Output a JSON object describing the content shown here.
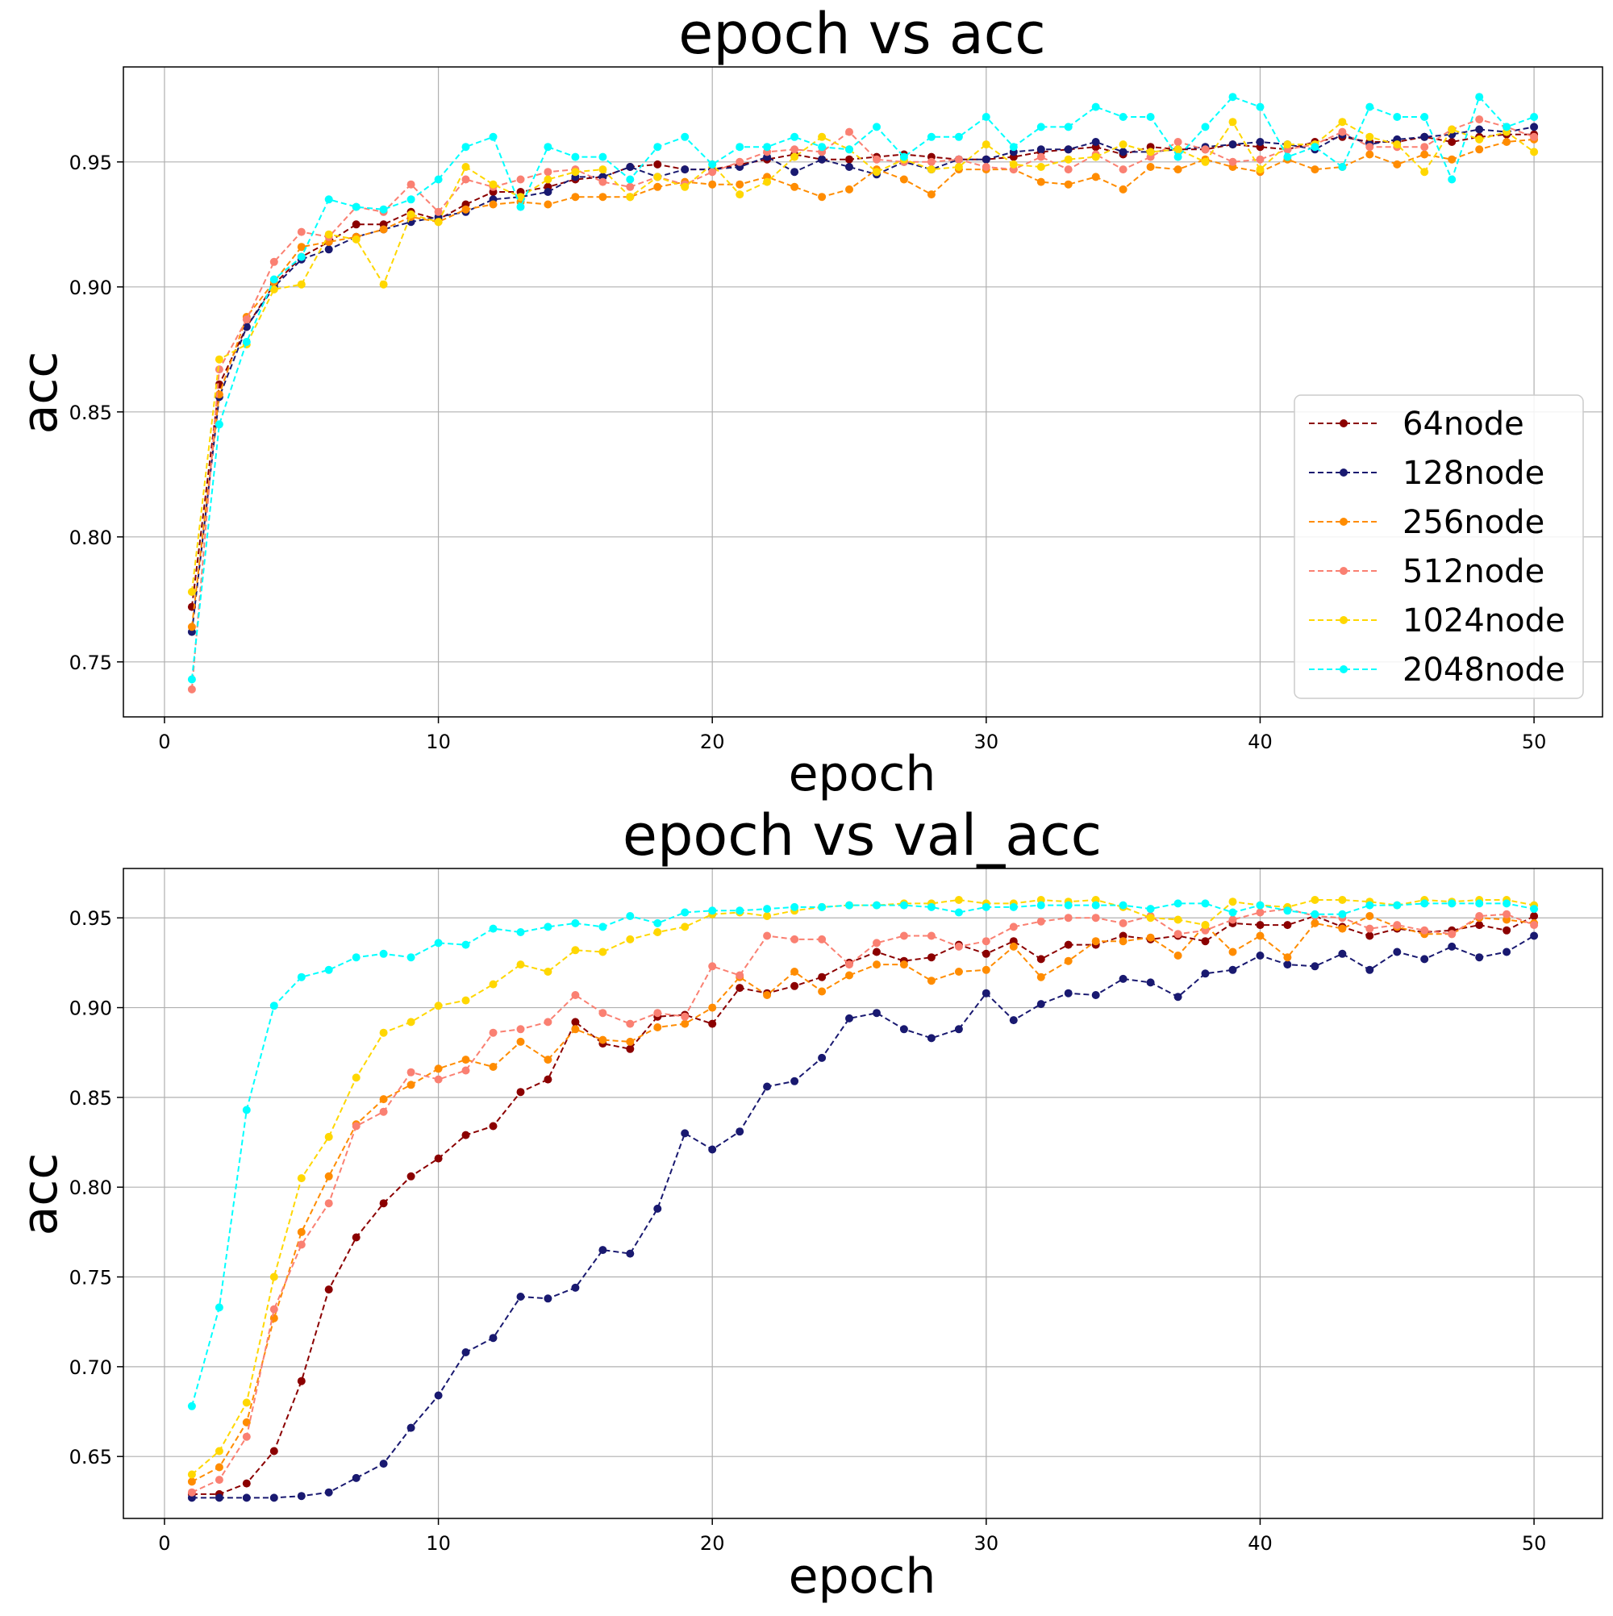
{
  "chart_data": [
    {
      "type": "line",
      "title": "epoch vs acc",
      "xlabel": "epoch",
      "ylabel": "acc",
      "xlim": [
        -1.5,
        52.5
      ],
      "ylim": [
        0.728,
        0.988
      ],
      "xticks": [
        0,
        10,
        20,
        30,
        40,
        50
      ],
      "xtick_labels": [
        "0",
        "10",
        "20",
        "30",
        "40",
        "50"
      ],
      "yticks": [
        0.75,
        0.8,
        0.85,
        0.9,
        0.95
      ],
      "ytick_labels": [
        "0.75",
        "0.80",
        "0.85",
        "0.90",
        "0.95"
      ],
      "grid": true,
      "legend": "center-right",
      "x": [
        1,
        2,
        3,
        4,
        5,
        6,
        7,
        8,
        9,
        10,
        11,
        12,
        13,
        14,
        15,
        16,
        17,
        18,
        19,
        20,
        21,
        22,
        23,
        24,
        25,
        26,
        27,
        28,
        29,
        30,
        31,
        32,
        33,
        34,
        35,
        36,
        37,
        38,
        39,
        40,
        41,
        42,
        43,
        44,
        45,
        46,
        47,
        48,
        49,
        50
      ],
      "series": [
        {
          "name": "64node",
          "color": "#8b0000",
          "values": [
            0.772,
            0.861,
            0.884,
            0.901,
            0.912,
            0.918,
            0.925,
            0.925,
            0.93,
            0.927,
            0.933,
            0.938,
            0.938,
            0.94,
            0.943,
            0.944,
            0.948,
            0.949,
            0.947,
            0.947,
            0.949,
            0.951,
            0.953,
            0.951,
            0.951,
            0.952,
            0.953,
            0.952,
            0.951,
            0.951,
            0.952,
            0.954,
            0.955,
            0.956,
            0.953,
            0.956,
            0.955,
            0.955,
            0.957,
            0.956,
            0.955,
            0.958,
            0.96,
            0.958,
            0.958,
            0.96,
            0.958,
            0.96,
            0.961,
            0.961
          ]
        },
        {
          "name": "128node",
          "color": "#191970",
          "values": [
            0.762,
            0.856,
            0.884,
            0.9,
            0.911,
            0.915,
            0.92,
            0.923,
            0.926,
            0.928,
            0.93,
            0.935,
            0.936,
            0.938,
            0.944,
            0.944,
            0.948,
            0.944,
            0.947,
            0.947,
            0.948,
            0.952,
            0.946,
            0.951,
            0.948,
            0.945,
            0.95,
            0.947,
            0.951,
            0.951,
            0.954,
            0.955,
            0.955,
            0.958,
            0.954,
            0.954,
            0.955,
            0.956,
            0.957,
            0.958,
            0.957,
            0.955,
            0.961,
            0.957,
            0.959,
            0.96,
            0.961,
            0.963,
            0.962,
            0.964
          ]
        },
        {
          "name": "256node",
          "color": "#ff8c00",
          "values": [
            0.764,
            0.857,
            0.888,
            0.902,
            0.916,
            0.918,
            0.92,
            0.923,
            0.928,
            0.926,
            0.931,
            0.933,
            0.934,
            0.933,
            0.936,
            0.936,
            0.936,
            0.94,
            0.942,
            0.941,
            0.941,
            0.944,
            0.94,
            0.936,
            0.939,
            0.947,
            0.943,
            0.937,
            0.947,
            0.947,
            0.947,
            0.942,
            0.941,
            0.944,
            0.939,
            0.948,
            0.947,
            0.951,
            0.948,
            0.946,
            0.951,
            0.947,
            0.948,
            0.953,
            0.949,
            0.953,
            0.951,
            0.955,
            0.958,
            0.959
          ]
        },
        {
          "name": "512node",
          "color": "#fa8072",
          "values": [
            0.739,
            0.867,
            0.887,
            0.91,
            0.922,
            0.92,
            0.932,
            0.93,
            0.941,
            0.93,
            0.943,
            0.94,
            0.943,
            0.946,
            0.947,
            0.942,
            0.94,
            0.944,
            0.941,
            0.946,
            0.95,
            0.954,
            0.955,
            0.954,
            0.962,
            0.951,
            0.95,
            0.95,
            0.951,
            0.948,
            0.947,
            0.952,
            0.947,
            0.953,
            0.947,
            0.952,
            0.958,
            0.955,
            0.95,
            0.951,
            0.955,
            0.957,
            0.962,
            0.956,
            0.956,
            0.956,
            0.963,
            0.967,
            0.964,
            0.96
          ]
        },
        {
          "name": "1024node",
          "color": "#ffd700",
          "values": [
            0.778,
            0.871,
            0.877,
            0.899,
            0.901,
            0.921,
            0.919,
            0.901,
            0.929,
            0.926,
            0.948,
            0.941,
            0.936,
            0.943,
            0.946,
            0.947,
            0.936,
            0.944,
            0.94,
            0.949,
            0.937,
            0.942,
            0.952,
            0.96,
            0.955,
            0.946,
            0.951,
            0.947,
            0.948,
            0.957,
            0.949,
            0.948,
            0.951,
            0.952,
            0.957,
            0.954,
            0.955,
            0.95,
            0.966,
            0.947,
            0.957,
            0.957,
            0.966,
            0.96,
            0.957,
            0.946,
            0.963,
            0.959,
            0.962,
            0.954
          ]
        },
        {
          "name": "2048node",
          "color": "#00ffff",
          "values": [
            0.743,
            0.845,
            0.878,
            0.903,
            0.912,
            0.935,
            0.932,
            0.931,
            0.935,
            0.943,
            0.956,
            0.96,
            0.932,
            0.956,
            0.952,
            0.952,
            0.943,
            0.956,
            0.96,
            0.949,
            0.956,
            0.956,
            0.96,
            0.956,
            0.955,
            0.964,
            0.952,
            0.96,
            0.96,
            0.968,
            0.956,
            0.964,
            0.964,
            0.972,
            0.968,
            0.968,
            0.952,
            0.964,
            0.976,
            0.972,
            0.952,
            0.956,
            0.948,
            0.972,
            0.968,
            0.968,
            0.943,
            0.976,
            0.964,
            0.968
          ]
        }
      ]
    },
    {
      "type": "line",
      "title": "epoch vs val_acc",
      "xlabel": "epoch",
      "ylabel": "acc",
      "xlim": [
        -1.5,
        52.5
      ],
      "ylim": [
        0.6155,
        0.9775
      ],
      "xticks": [
        0,
        10,
        20,
        30,
        40,
        50
      ],
      "xtick_labels": [
        "0",
        "10",
        "20",
        "30",
        "40",
        "50"
      ],
      "yticks": [
        0.65,
        0.7,
        0.75,
        0.8,
        0.85,
        0.9,
        0.95
      ],
      "ytick_labels": [
        "0.65",
        "0.70",
        "0.75",
        "0.80",
        "0.85",
        "0.90",
        "0.95"
      ],
      "grid": true,
      "legend": "none",
      "x": [
        1,
        2,
        3,
        4,
        5,
        6,
        7,
        8,
        9,
        10,
        11,
        12,
        13,
        14,
        15,
        16,
        17,
        18,
        19,
        20,
        21,
        22,
        23,
        24,
        25,
        26,
        27,
        28,
        29,
        30,
        31,
        32,
        33,
        34,
        35,
        36,
        37,
        38,
        39,
        40,
        41,
        42,
        43,
        44,
        45,
        46,
        47,
        48,
        49,
        50
      ],
      "series": [
        {
          "name": "64node",
          "color": "#8b0000",
          "values": [
            0.629,
            0.629,
            0.635,
            0.653,
            0.692,
            0.743,
            0.772,
            0.791,
            0.806,
            0.816,
            0.829,
            0.834,
            0.853,
            0.86,
            0.892,
            0.88,
            0.877,
            0.895,
            0.896,
            0.891,
            0.911,
            0.908,
            0.912,
            0.917,
            0.925,
            0.931,
            0.926,
            0.928,
            0.935,
            0.93,
            0.937,
            0.927,
            0.935,
            0.935,
            0.94,
            0.938,
            0.94,
            0.937,
            0.947,
            0.946,
            0.946,
            0.951,
            0.945,
            0.94,
            0.944,
            0.942,
            0.943,
            0.946,
            0.943,
            0.951
          ]
        },
        {
          "name": "128node",
          "color": "#191970",
          "values": [
            0.627,
            0.627,
            0.627,
            0.627,
            0.628,
            0.63,
            0.638,
            0.646,
            0.666,
            0.684,
            0.708,
            0.716,
            0.739,
            0.738,
            0.744,
            0.765,
            0.763,
            0.788,
            0.83,
            0.821,
            0.831,
            0.856,
            0.859,
            0.872,
            0.894,
            0.897,
            0.888,
            0.883,
            0.888,
            0.908,
            0.893,
            0.902,
            0.908,
            0.907,
            0.916,
            0.914,
            0.906,
            0.919,
            0.921,
            0.929,
            0.924,
            0.923,
            0.93,
            0.921,
            0.931,
            0.927,
            0.934,
            0.928,
            0.931,
            0.94
          ]
        },
        {
          "name": "256node",
          "color": "#ff8c00",
          "values": [
            0.636,
            0.644,
            0.669,
            0.727,
            0.775,
            0.806,
            0.835,
            0.849,
            0.857,
            0.866,
            0.871,
            0.867,
            0.881,
            0.871,
            0.888,
            0.882,
            0.881,
            0.889,
            0.891,
            0.9,
            0.917,
            0.907,
            0.92,
            0.909,
            0.918,
            0.924,
            0.924,
            0.915,
            0.92,
            0.921,
            0.934,
            0.917,
            0.926,
            0.937,
            0.937,
            0.939,
            0.929,
            0.946,
            0.931,
            0.94,
            0.928,
            0.947,
            0.944,
            0.951,
            0.945,
            0.941,
            0.941,
            0.95,
            0.949,
            0.947
          ]
        },
        {
          "name": "512node",
          "color": "#fa8072",
          "values": [
            0.63,
            0.637,
            0.661,
            0.732,
            0.768,
            0.791,
            0.834,
            0.842,
            0.864,
            0.86,
            0.865,
            0.886,
            0.888,
            0.892,
            0.907,
            0.897,
            0.891,
            0.897,
            0.895,
            0.923,
            0.918,
            0.94,
            0.938,
            0.938,
            0.924,
            0.936,
            0.94,
            0.94,
            0.934,
            0.937,
            0.945,
            0.948,
            0.95,
            0.95,
            0.947,
            0.951,
            0.941,
            0.943,
            0.949,
            0.953,
            0.955,
            0.951,
            0.95,
            0.944,
            0.946,
            0.943,
            0.941,
            0.951,
            0.952,
            0.946
          ]
        },
        {
          "name": "1024node",
          "color": "#ffd700",
          "values": [
            0.64,
            0.653,
            0.68,
            0.75,
            0.805,
            0.828,
            0.861,
            0.886,
            0.892,
            0.901,
            0.904,
            0.913,
            0.924,
            0.92,
            0.932,
            0.931,
            0.938,
            0.942,
            0.945,
            0.952,
            0.953,
            0.951,
            0.954,
            0.956,
            0.957,
            0.957,
            0.958,
            0.958,
            0.96,
            0.958,
            0.958,
            0.96,
            0.959,
            0.96,
            0.956,
            0.95,
            0.949,
            0.946,
            0.959,
            0.957,
            0.956,
            0.96,
            0.96,
            0.959,
            0.957,
            0.96,
            0.959,
            0.96,
            0.96,
            0.957
          ]
        },
        {
          "name": "2048node",
          "color": "#00ffff",
          "values": [
            0.678,
            0.733,
            0.843,
            0.901,
            0.917,
            0.921,
            0.928,
            0.93,
            0.928,
            0.936,
            0.935,
            0.944,
            0.942,
            0.945,
            0.947,
            0.945,
            0.951,
            0.947,
            0.953,
            0.954,
            0.954,
            0.955,
            0.956,
            0.956,
            0.957,
            0.957,
            0.957,
            0.956,
            0.953,
            0.956,
            0.956,
            0.957,
            0.957,
            0.957,
            0.957,
            0.955,
            0.958,
            0.958,
            0.953,
            0.957,
            0.954,
            0.952,
            0.952,
            0.957,
            0.957,
            0.958,
            0.958,
            0.958,
            0.958,
            0.955
          ]
        }
      ]
    }
  ]
}
